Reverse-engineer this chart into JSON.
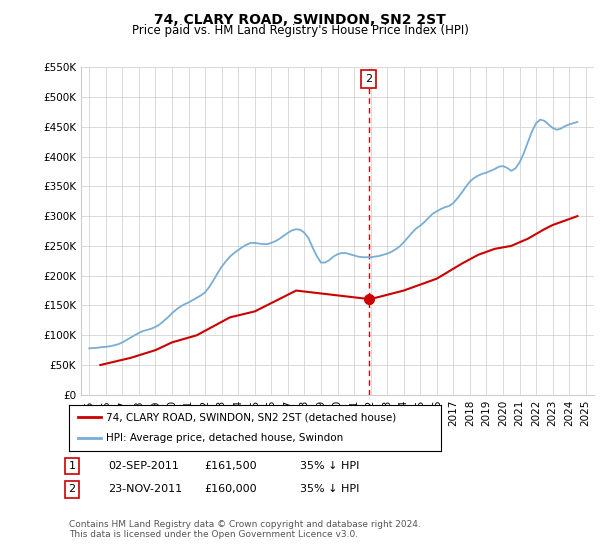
{
  "title": "74, CLARY ROAD, SWINDON, SN2 2ST",
  "subtitle": "Price paid vs. HM Land Registry's House Price Index (HPI)",
  "ylim": [
    0,
    550000
  ],
  "xlim_start": 1994.5,
  "xlim_end": 2025.5,
  "hpi_color": "#7aadd4",
  "price_color": "#cc0000",
  "vline_color": "#cc0000",
  "vline_x": 2011.9,
  "marker2_x": 2011.9,
  "marker2_y": 530000,
  "hpi_years": [
    1995.0,
    1995.25,
    1995.5,
    1995.75,
    1996.0,
    1996.25,
    1996.5,
    1996.75,
    1997.0,
    1997.25,
    1997.5,
    1997.75,
    1998.0,
    1998.25,
    1998.5,
    1998.75,
    1999.0,
    1999.25,
    1999.5,
    1999.75,
    2000.0,
    2000.25,
    2000.5,
    2000.75,
    2001.0,
    2001.25,
    2001.5,
    2001.75,
    2002.0,
    2002.25,
    2002.5,
    2002.75,
    2003.0,
    2003.25,
    2003.5,
    2003.75,
    2004.0,
    2004.25,
    2004.5,
    2004.75,
    2005.0,
    2005.25,
    2005.5,
    2005.75,
    2006.0,
    2006.25,
    2006.5,
    2006.75,
    2007.0,
    2007.25,
    2007.5,
    2007.75,
    2008.0,
    2008.25,
    2008.5,
    2008.75,
    2009.0,
    2009.25,
    2009.5,
    2009.75,
    2010.0,
    2010.25,
    2010.5,
    2010.75,
    2011.0,
    2011.25,
    2011.5,
    2011.75,
    2012.0,
    2012.25,
    2012.5,
    2012.75,
    2013.0,
    2013.25,
    2013.5,
    2013.75,
    2014.0,
    2014.25,
    2014.5,
    2014.75,
    2015.0,
    2015.25,
    2015.5,
    2015.75,
    2016.0,
    2016.25,
    2016.5,
    2016.75,
    2017.0,
    2017.25,
    2017.5,
    2017.75,
    2018.0,
    2018.25,
    2018.5,
    2018.75,
    2019.0,
    2019.25,
    2019.5,
    2019.75,
    2020.0,
    2020.25,
    2020.5,
    2020.75,
    2021.0,
    2021.25,
    2021.5,
    2021.75,
    2022.0,
    2022.25,
    2022.5,
    2022.75,
    2023.0,
    2023.25,
    2023.5,
    2023.75,
    2024.0,
    2024.25,
    2024.5
  ],
  "hpi_values": [
    78000,
    78500,
    79000,
    80000,
    80500,
    81500,
    83000,
    85000,
    88000,
    92000,
    96000,
    100000,
    104000,
    107000,
    109000,
    111000,
    114000,
    118000,
    124000,
    130000,
    137000,
    143000,
    148000,
    152000,
    155000,
    159000,
    163000,
    167000,
    172000,
    181000,
    192000,
    204000,
    215000,
    224000,
    232000,
    238000,
    243000,
    248000,
    252000,
    255000,
    255000,
    254000,
    253000,
    253000,
    255000,
    258000,
    262000,
    267000,
    272000,
    276000,
    278000,
    277000,
    272000,
    263000,
    247000,
    233000,
    222000,
    222000,
    226000,
    232000,
    236000,
    238000,
    238000,
    236000,
    234000,
    232000,
    231000,
    231000,
    231000,
    232000,
    233000,
    235000,
    237000,
    240000,
    244000,
    249000,
    256000,
    264000,
    272000,
    279000,
    284000,
    290000,
    297000,
    304000,
    308000,
    312000,
    315000,
    317000,
    322000,
    330000,
    339000,
    349000,
    358000,
    364000,
    368000,
    371000,
    373000,
    376000,
    379000,
    383000,
    384000,
    381000,
    376000,
    380000,
    390000,
    405000,
    424000,
    442000,
    456000,
    462000,
    460000,
    454000,
    448000,
    445000,
    447000,
    451000,
    454000,
    456000,
    458000
  ],
  "price_years": [
    1995.67,
    1997.5,
    1999.0,
    2000.0,
    2001.5,
    2003.5,
    2005.0,
    2007.5,
    2011.67,
    2011.9,
    2014.0,
    2016.0,
    2017.5,
    2018.5,
    2019.5,
    2020.5,
    2021.5,
    2022.0,
    2022.5,
    2023.0,
    2023.5,
    2024.0,
    2024.5
  ],
  "price_values": [
    50000,
    62000,
    75000,
    88000,
    100000,
    130000,
    140000,
    175000,
    161500,
    160000,
    175000,
    195000,
    220000,
    235000,
    245000,
    250000,
    262000,
    270000,
    278000,
    285000,
    290000,
    295000,
    300000
  ],
  "legend_line1": "74, CLARY ROAD, SWINDON, SN2 2ST (detached house)",
  "legend_line2": "HPI: Average price, detached house, Swindon",
  "transactions": [
    {
      "num": "1",
      "date": "02-SEP-2011",
      "price": "£161,500",
      "hpi": "35% ↓ HPI"
    },
    {
      "num": "2",
      "date": "23-NOV-2011",
      "price": "£160,000",
      "hpi": "35% ↓ HPI"
    }
  ],
  "footer": "Contains HM Land Registry data © Crown copyright and database right 2024.\nThis data is licensed under the Open Government Licence v3.0.",
  "background_color": "#ffffff",
  "grid_color": "#cccccc",
  "title_fontsize": 10,
  "subtitle_fontsize": 8.5,
  "tick_fontsize": 7.5
}
